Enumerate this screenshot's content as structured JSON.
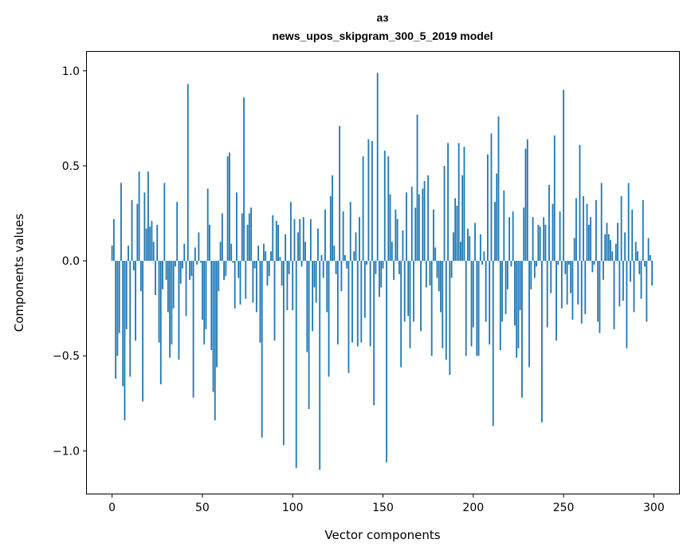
{
  "chart_data": {
    "type": "bar",
    "title": "аз",
    "subtitle": "news_upos_skipgram_300_5_2019 model",
    "xlabel": "Vector components",
    "ylabel": "Components values",
    "xlim": [
      -13.95,
      313.95
    ],
    "ylim": [
      -1.225,
      1.1
    ],
    "xticks": [
      0,
      50,
      100,
      150,
      200,
      250,
      300
    ],
    "yticks": [
      -1.0,
      -0.5,
      0.0,
      0.5,
      1.0
    ],
    "ytick_labels": [
      "−1.0",
      "−0.5",
      "0.0",
      "0.5",
      "1.0"
    ],
    "bar_color": "#1f77b4",
    "x": [
      0,
      1,
      2,
      3,
      4,
      5,
      6,
      7,
      8,
      9,
      10,
      11,
      12,
      13,
      14,
      15,
      16,
      17,
      18,
      19,
      20,
      21,
      22,
      23,
      24,
      25,
      26,
      27,
      28,
      29,
      30,
      31,
      32,
      33,
      34,
      35,
      36,
      37,
      38,
      39,
      40,
      41,
      42,
      43,
      44,
      45,
      46,
      47,
      48,
      49,
      50,
      51,
      52,
      53,
      54,
      55,
      56,
      57,
      58,
      59,
      60,
      61,
      62,
      63,
      64,
      65,
      66,
      67,
      68,
      69,
      70,
      71,
      72,
      73,
      74,
      75,
      76,
      77,
      78,
      79,
      80,
      81,
      82,
      83,
      84,
      85,
      86,
      87,
      88,
      89,
      90,
      91,
      92,
      93,
      94,
      95,
      96,
      97,
      98,
      99,
      100,
      101,
      102,
      103,
      104,
      105,
      106,
      107,
      108,
      109,
      110,
      111,
      112,
      113,
      114,
      115,
      116,
      117,
      118,
      119,
      120,
      121,
      122,
      123,
      124,
      125,
      126,
      127,
      128,
      129,
      130,
      131,
      132,
      133,
      134,
      135,
      136,
      137,
      138,
      139,
      140,
      141,
      142,
      143,
      144,
      145,
      146,
      147,
      148,
      149,
      150,
      151,
      152,
      153,
      154,
      155,
      156,
      157,
      158,
      159,
      160,
      161,
      162,
      163,
      164,
      165,
      166,
      167,
      168,
      169,
      170,
      171,
      172,
      173,
      174,
      175,
      176,
      177,
      178,
      179,
      180,
      181,
      182,
      183,
      184,
      185,
      186,
      187,
      188,
      189,
      190,
      191,
      192,
      193,
      194,
      195,
      196,
      197,
      198,
      199,
      200,
      201,
      202,
      203,
      204,
      205,
      206,
      207,
      208,
      209,
      210,
      211,
      212,
      213,
      214,
      215,
      216,
      217,
      218,
      219,
      220,
      221,
      222,
      223,
      224,
      225,
      226,
      227,
      228,
      229,
      230,
      231,
      232,
      233,
      234,
      235,
      236,
      237,
      238,
      239,
      240,
      241,
      242,
      243,
      244,
      245,
      246,
      247,
      248,
      249,
      250,
      251,
      252,
      253,
      254,
      255,
      256,
      257,
      258,
      259,
      260,
      261,
      262,
      263,
      264,
      265,
      266,
      267,
      268,
      269,
      270,
      271,
      272,
      273,
      274,
      275,
      276,
      277,
      278,
      279,
      280,
      281,
      282,
      283,
      284,
      285,
      286,
      287,
      288,
      289,
      290,
      291,
      292,
      293,
      294,
      295,
      296,
      297,
      298,
      299
    ],
    "values": [
      0.08,
      0.22,
      -0.62,
      -0.5,
      -0.38,
      0.41,
      -0.66,
      -0.84,
      -0.36,
      0.08,
      -0.61,
      0.32,
      -0.05,
      -0.42,
      0.3,
      0.47,
      -0.16,
      -0.74,
      0.36,
      0.17,
      0.47,
      0.18,
      0.21,
      0.1,
      -0.18,
      0.19,
      -0.43,
      -0.65,
      -0.15,
      0.41,
      -0.1,
      -0.27,
      -0.51,
      -0.44,
      -0.25,
      -0.03,
      0.31,
      -0.52,
      -0.12,
      -0.04,
      0.09,
      -0.29,
      0.93,
      -0.1,
      -0.08,
      -0.72,
      0.07,
      -0.02,
      0.15,
      -0.01,
      -0.31,
      -0.44,
      -0.36,
      0.38,
      0.19,
      -0.47,
      -0.69,
      -0.84,
      -0.56,
      -0.16,
      0.1,
      0.25,
      -0.1,
      -0.08,
      0.55,
      0.57,
      0.09,
      -0.01,
      -0.25,
      0.36,
      -0.09,
      -0.23,
      0.25,
      0.86,
      -0.2,
      0.19,
      0.25,
      0.28,
      -0.22,
      -0.04,
      -0.27,
      0.08,
      -0.43,
      -0.93,
      0.09,
      0.05,
      -0.13,
      -0.08,
      0.05,
      0.24,
      -0.42,
      0.21,
      0.19,
      0.02,
      -0.13,
      -0.97,
      0.14,
      -0.26,
      -0.07,
      0.31,
      -0.26,
      0.22,
      -1.09,
      0.15,
      0.22,
      -0.03,
      0.23,
      0.1,
      -0.48,
      -0.78,
      0.22,
      -0.37,
      -0.14,
      -0.22,
      0.17,
      -1.1,
      0.03,
      -0.09,
      0.27,
      -0.27,
      -0.61,
      0.34,
      0.45,
      0.08,
      -0.07,
      -0.44,
      0.71,
      -0.16,
      0.26,
      0.03,
      -0.04,
      -0.59,
      0.31,
      -0.43,
      0.05,
      0.15,
      -0.45,
      0.23,
      -0.43,
      0.55,
      -0.3,
      -0.02,
      0.64,
      -0.45,
      0.63,
      -0.76,
      -0.07,
      0.99,
      -0.19,
      -0.14,
      -0.04,
      0.58,
      -1.06,
      0.55,
      0.35,
      0.1,
      -0.1,
      0.27,
      0.22,
      -0.07,
      -0.56,
      0.16,
      -0.32,
      0.36,
      -0.29,
      -0.46,
      0.39,
      -0.32,
      0.28,
      0.77,
      0.35,
      -0.37,
      0.38,
      0.42,
      -0.14,
      0.45,
      -0.13,
      -0.5,
      0.27,
      0.07,
      -0.09,
      -0.16,
      -0.27,
      -0.46,
      0.5,
      -0.52,
      0.62,
      -0.6,
      -0.09,
      0.15,
      0.33,
      0.29,
      0.62,
      0.1,
      0.45,
      0.6,
      -0.5,
      0.17,
      0.13,
      -0.45,
      -0.35,
      0.2,
      -0.5,
      -0.5,
      0.14,
      -0.02,
      0.05,
      -0.32,
      0.56,
      -0.44,
      0.67,
      -0.87,
      0.31,
      0.46,
      0.76,
      -0.47,
      -0.32,
      0.37,
      -0.28,
      -0.15,
      0.23,
      -0.03,
      0.26,
      -0.34,
      -0.51,
      -0.46,
      -0.26,
      -0.72,
      0.28,
      0.59,
      0.64,
      -0.56,
      -0.15,
      0.23,
      -0.09,
      -0.03,
      0.19,
      0.18,
      -0.85,
      0.23,
      0.19,
      -0.35,
      0.4,
      -0.17,
      0.3,
      0.66,
      -0.42,
      -0.02,
      0.26,
      -0.25,
      0.9,
      -0.07,
      -0.23,
      -0.02,
      -0.17,
      -0.31,
      0.12,
      0.33,
      -0.23,
      0.61,
      -0.33,
      0.34,
      -0.28,
      0.3,
      0.19,
      0.23,
      -0.06,
      -0.02,
      0.32,
      -0.32,
      -0.38,
      0.41,
      -0.1,
      0.14,
      0.2,
      0.14,
      0.11,
      0.05,
      -0.36,
      0.09,
      0.2,
      -0.24,
      0.34,
      -0.21,
      0.15,
      -0.46,
      0.41,
      -0.11,
      0.27,
      -0.27,
      0.1,
      0.05,
      -0.07,
      -0.2,
      0.32,
      -0.03,
      -0.32,
      0.12,
      0.03,
      -0.13
    ]
  }
}
